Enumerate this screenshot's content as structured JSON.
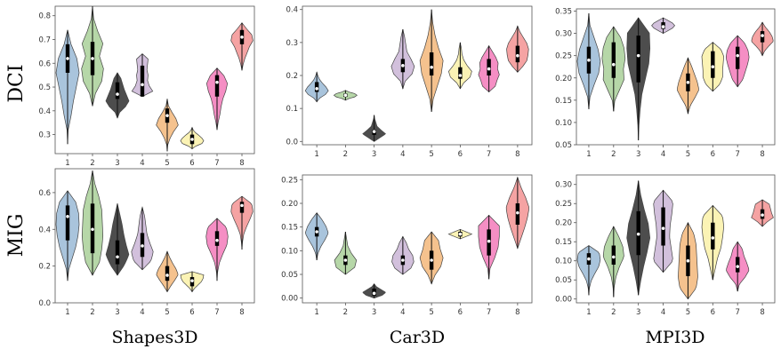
{
  "colors": [
    "#a9c4dc",
    "#b6d7a8",
    "#4d4d4d",
    "#d2c0dc",
    "#f5c28e",
    "#fbf3b5",
    "#f58ec4",
    "#f5a3a3"
  ],
  "row_labels": [
    "DCI",
    "MIG"
  ],
  "col_labels": [
    "Shapes3D",
    "Car3D",
    "MPI3D"
  ],
  "chart_data": [
    {
      "type": "violin",
      "row": "DCI",
      "dataset": "Shapes3D",
      "categories": [
        "1",
        "2",
        "3",
        "4",
        "5",
        "6",
        "7",
        "8"
      ],
      "ylim": [
        0.22,
        0.84
      ],
      "yticks": [
        0.3,
        0.4,
        0.5,
        0.6,
        0.7,
        0.8
      ],
      "ytick_labels": [
        "0.3",
        "0.4",
        "0.5",
        "0.6",
        "0.7",
        "0.8"
      ],
      "violins": [
        {
          "min": 0.26,
          "max": 0.74,
          "q1": 0.56,
          "median": 0.62,
          "q3": 0.68,
          "widths": [
            0.05,
            0.3,
            0.5,
            0.75,
            1.0,
            0.8,
            0.3
          ]
        },
        {
          "min": 0.42,
          "max": 0.84,
          "q1": 0.55,
          "median": 0.62,
          "q3": 0.69,
          "widths": [
            0.25,
            0.8,
            0.95,
            0.6,
            0.9,
            0.45,
            0.1
          ]
        },
        {
          "min": 0.37,
          "max": 0.56,
          "q1": 0.45,
          "median": 0.47,
          "q3": 0.52,
          "widths": [
            0.2,
            0.7,
            1.0,
            0.8,
            0.6,
            0.45,
            0.3
          ]
        },
        {
          "min": 0.46,
          "max": 0.64,
          "q1": 0.46,
          "median": 0.51,
          "q3": 0.59,
          "widths": [
            0.9,
            0.6,
            0.45,
            0.5,
            0.4,
            0.45,
            0.5
          ]
        },
        {
          "min": 0.23,
          "max": 0.45,
          "q1": 0.35,
          "median": 0.38,
          "q3": 0.41,
          "widths": [
            0.05,
            0.25,
            0.55,
            0.95,
            0.75,
            0.4,
            0.1
          ]
        },
        {
          "min": 0.24,
          "max": 0.33,
          "q1": 0.26,
          "median": 0.28,
          "q3": 0.3,
          "widths": [
            0.3,
            0.85,
            1.0,
            0.85,
            0.6,
            0.3,
            0.1
          ]
        },
        {
          "min": 0.32,
          "max": 0.58,
          "q1": 0.46,
          "median": 0.52,
          "q3": 0.55,
          "widths": [
            0.1,
            0.25,
            0.35,
            0.5,
            0.75,
            0.9,
            0.6
          ]
        },
        {
          "min": 0.57,
          "max": 0.77,
          "q1": 0.68,
          "median": 0.71,
          "q3": 0.74,
          "widths": [
            0.1,
            0.25,
            0.45,
            0.65,
            0.95,
            0.85,
            0.4
          ]
        }
      ]
    },
    {
      "type": "violin",
      "row": "DCI",
      "dataset": "Car3D",
      "categories": [
        "1",
        "2",
        "3",
        "4",
        "5",
        "6",
        "7",
        "8"
      ],
      "ylim": [
        -0.01,
        0.41
      ],
      "yticks": [
        0.0,
        0.1,
        0.2,
        0.3,
        0.4
      ],
      "ytick_labels": [
        "0.0",
        "0.1",
        "0.2",
        "0.3",
        "0.4"
      ],
      "violins": [
        {
          "min": 0.12,
          "max": 0.21,
          "q1": 0.15,
          "median": 0.16,
          "q3": 0.18,
          "widths": [
            0.25,
            0.75,
            1.0,
            0.8,
            0.5,
            0.25,
            0.1
          ]
        },
        {
          "min": 0.125,
          "max": 0.155,
          "q1": 0.135,
          "median": 0.14,
          "q3": 0.145,
          "widths": [
            0.3,
            0.8,
            1.0,
            0.8,
            0.3
          ]
        },
        {
          "min": 0.0,
          "max": 0.08,
          "q1": 0.02,
          "median": 0.03,
          "q3": 0.035,
          "widths": [
            0.5,
            1.0,
            0.6,
            0.25,
            0.15,
            0.05
          ]
        },
        {
          "min": 0.16,
          "max": 0.34,
          "q1": 0.21,
          "median": 0.23,
          "q3": 0.25,
          "widths": [
            0.2,
            0.8,
            1.0,
            0.7,
            0.35,
            0.25,
            0.15
          ]
        },
        {
          "min": 0.09,
          "max": 0.4,
          "q1": 0.2,
          "median": 0.225,
          "q3": 0.27,
          "widths": [
            0.15,
            0.5,
            0.85,
            1.0,
            0.6,
            0.3,
            0.1
          ]
        },
        {
          "min": 0.16,
          "max": 0.3,
          "q1": 0.19,
          "median": 0.2,
          "q3": 0.225,
          "widths": [
            0.3,
            0.85,
            1.0,
            0.6,
            0.3,
            0.15,
            0.1
          ]
        },
        {
          "min": 0.15,
          "max": 0.29,
          "q1": 0.2,
          "median": 0.22,
          "q3": 0.25,
          "widths": [
            0.55,
            0.7,
            0.9,
            0.75,
            0.8,
            0.6,
            0.3
          ]
        },
        {
          "min": 0.21,
          "max": 0.35,
          "q1": 0.24,
          "median": 0.26,
          "q3": 0.29,
          "widths": [
            0.45,
            0.8,
            0.9,
            0.95,
            0.8,
            0.5,
            0.2
          ]
        }
      ]
    },
    {
      "type": "violin",
      "row": "DCI",
      "dataset": "MPI3D",
      "categories": [
        "1",
        "2",
        "3",
        "4",
        "5",
        "6",
        "7",
        "8"
      ],
      "ylim": [
        0.05,
        0.355
      ],
      "yticks": [
        0.05,
        0.1,
        0.15,
        0.2,
        0.25,
        0.3,
        0.35
      ],
      "ytick_labels": [
        "0.05",
        "0.10",
        "0.15",
        "0.20",
        "0.25",
        "0.30",
        "0.35"
      ],
      "violins": [
        {
          "min": 0.13,
          "max": 0.345,
          "q1": 0.21,
          "median": 0.24,
          "q3": 0.27,
          "widths": [
            0.1,
            0.45,
            0.85,
            1.0,
            0.8,
            0.45,
            0.1
          ]
        },
        {
          "min": 0.125,
          "max": 0.315,
          "q1": 0.2,
          "median": 0.23,
          "q3": 0.28,
          "widths": [
            0.1,
            0.5,
            0.9,
            0.85,
            1.0,
            0.9,
            0.6
          ]
        },
        {
          "min": 0.06,
          "max": 0.335,
          "q1": 0.19,
          "median": 0.25,
          "q3": 0.295,
          "widths": [
            0.05,
            0.15,
            0.3,
            0.6,
            0.9,
            1.0,
            0.95
          ]
        },
        {
          "min": 0.3,
          "max": 0.335,
          "q1": 0.31,
          "median": 0.315,
          "q3": 0.325,
          "widths": [
            0.4,
            0.8,
            1.0,
            0.8,
            0.4
          ]
        },
        {
          "min": 0.12,
          "max": 0.245,
          "q1": 0.17,
          "median": 0.19,
          "q3": 0.21,
          "widths": [
            0.2,
            0.6,
            0.95,
            0.8,
            0.55,
            0.3
          ]
        },
        {
          "min": 0.17,
          "max": 0.28,
          "q1": 0.2,
          "median": 0.225,
          "q3": 0.26,
          "widths": [
            0.6,
            0.85,
            0.85,
            0.9,
            0.95,
            0.7
          ]
        },
        {
          "min": 0.18,
          "max": 0.295,
          "q1": 0.22,
          "median": 0.25,
          "q3": 0.27,
          "widths": [
            0.45,
            0.65,
            0.85,
            1.0,
            0.9,
            0.6
          ]
        },
        {
          "min": 0.25,
          "max": 0.325,
          "q1": 0.28,
          "median": 0.295,
          "q3": 0.305,
          "widths": [
            0.2,
            0.55,
            0.95,
            0.85,
            0.6,
            0.25
          ]
        }
      ]
    },
    {
      "type": "violin",
      "row": "MIG",
      "dataset": "Shapes3D",
      "categories": [
        "1",
        "2",
        "3",
        "4",
        "5",
        "6",
        "7",
        "8"
      ],
      "ylim": [
        0.0,
        0.73
      ],
      "yticks": [
        0.0,
        0.2,
        0.4,
        0.6
      ],
      "ytick_labels": [
        "0.0",
        "0.2",
        "0.4",
        "0.6"
      ],
      "violins": [
        {
          "min": 0.12,
          "max": 0.61,
          "q1": 0.34,
          "median": 0.47,
          "q3": 0.53,
          "widths": [
            0.1,
            0.4,
            0.7,
            0.9,
            1.0,
            0.95,
            0.7
          ]
        },
        {
          "min": 0.15,
          "max": 0.72,
          "q1": 0.27,
          "median": 0.4,
          "q3": 0.54,
          "widths": [
            0.6,
            0.8,
            0.9,
            0.85,
            0.8,
            0.55,
            0.2
          ]
        },
        {
          "min": 0.15,
          "max": 0.54,
          "q1": 0.21,
          "median": 0.25,
          "q3": 0.34,
          "widths": [
            0.6,
            1.0,
            0.75,
            0.55,
            0.4,
            0.2
          ]
        },
        {
          "min": 0.18,
          "max": 0.52,
          "q1": 0.25,
          "median": 0.31,
          "q3": 0.38,
          "widths": [
            0.75,
            0.95,
            0.65,
            0.4,
            0.3,
            0.2
          ]
        },
        {
          "min": 0.06,
          "max": 0.28,
          "q1": 0.12,
          "median": 0.15,
          "q3": 0.2,
          "widths": [
            0.3,
            0.65,
            0.95,
            0.75,
            0.45,
            0.2
          ]
        },
        {
          "min": 0.06,
          "max": 0.17,
          "q1": 0.09,
          "median": 0.12,
          "q3": 0.14,
          "widths": [
            0.2,
            0.5,
            0.8,
            0.95,
            1.0
          ]
        },
        {
          "min": 0.12,
          "max": 0.46,
          "q1": 0.31,
          "median": 0.34,
          "q3": 0.39,
          "widths": [
            0.05,
            0.2,
            0.5,
            0.85,
            0.95,
            0.8
          ]
        },
        {
          "min": 0.29,
          "max": 0.58,
          "q1": 0.49,
          "median": 0.53,
          "q3": 0.55,
          "widths": [
            0.05,
            0.15,
            0.4,
            0.7,
            0.95,
            0.85
          ]
        }
      ]
    },
    {
      "type": "violin",
      "row": "MIG",
      "dataset": "Car3D",
      "categories": [
        "1",
        "2",
        "3",
        "4",
        "5",
        "6",
        "7",
        "8"
      ],
      "ylim": [
        -0.01,
        0.26
      ],
      "yticks": [
        0.0,
        0.05,
        0.1,
        0.15,
        0.2,
        0.25
      ],
      "ytick_labels": [
        "0.00",
        "0.05",
        "0.10",
        "0.15",
        "0.20",
        "0.25"
      ],
      "violins": [
        {
          "min": 0.08,
          "max": 0.18,
          "q1": 0.13,
          "median": 0.14,
          "q3": 0.15,
          "widths": [
            0.1,
            0.35,
            0.7,
            1.0,
            0.8,
            0.45
          ]
        },
        {
          "min": 0.05,
          "max": 0.14,
          "q1": 0.07,
          "median": 0.08,
          "q3": 0.09,
          "widths": [
            0.8,
            0.95,
            0.5,
            0.2,
            0.1
          ]
        },
        {
          "min": 0.0,
          "max": 0.03,
          "q1": 0.005,
          "median": 0.01,
          "q3": 0.02,
          "widths": [
            0.7,
            1.0,
            0.6,
            0.2
          ]
        },
        {
          "min": 0.05,
          "max": 0.13,
          "q1": 0.07,
          "median": 0.08,
          "q3": 0.09,
          "widths": [
            0.7,
            0.95,
            0.85,
            0.5,
            0.3
          ]
        },
        {
          "min": 0.03,
          "max": 0.14,
          "q1": 0.06,
          "median": 0.08,
          "q3": 0.1,
          "widths": [
            0.3,
            0.8,
            1.0,
            0.75,
            0.6
          ]
        },
        {
          "min": 0.125,
          "max": 0.145,
          "q1": 0.13,
          "median": 0.135,
          "q3": 0.14,
          "widths": [
            0.5,
            1.0,
            0.5
          ]
        },
        {
          "min": 0.04,
          "max": 0.175,
          "q1": 0.09,
          "median": 0.12,
          "q3": 0.145,
          "widths": [
            0.1,
            0.5,
            0.8,
            0.9,
            0.9
          ]
        },
        {
          "min": 0.105,
          "max": 0.255,
          "q1": 0.155,
          "median": 0.18,
          "q3": 0.2,
          "widths": [
            0.3,
            0.6,
            0.85,
            1.0,
            0.7,
            0.3
          ]
        }
      ]
    },
    {
      "type": "violin",
      "row": "MIG",
      "dataset": "MPI3D",
      "categories": [
        "1",
        "2",
        "3",
        "4",
        "5",
        "6",
        "7",
        "8"
      ],
      "ylim": [
        -0.01,
        0.325
      ],
      "yticks": [
        0.0,
        0.05,
        0.1,
        0.15,
        0.2,
        0.25,
        0.3
      ],
      "ytick_labels": [
        "0.00",
        "0.05",
        "0.10",
        "0.15",
        "0.20",
        "0.25",
        "0.30"
      ],
      "violins": [
        {
          "min": 0.01,
          "max": 0.14,
          "q1": 0.09,
          "median": 0.105,
          "q3": 0.12,
          "widths": [
            0.05,
            0.2,
            0.5,
            0.85,
            1.0,
            0.9
          ]
        },
        {
          "min": 0.005,
          "max": 0.19,
          "q1": 0.09,
          "median": 0.11,
          "q3": 0.14,
          "widths": [
            0.05,
            0.2,
            0.5,
            0.9,
            0.8,
            0.45
          ]
        },
        {
          "min": 0.01,
          "max": 0.31,
          "q1": 0.115,
          "median": 0.17,
          "q3": 0.23,
          "widths": [
            0.2,
            0.45,
            0.75,
            1.0,
            0.85,
            0.5,
            0.2
          ]
        },
        {
          "min": 0.07,
          "max": 0.285,
          "q1": 0.14,
          "median": 0.185,
          "q3": 0.24,
          "widths": [
            0.85,
            0.7,
            0.55,
            0.6,
            0.75,
            0.85
          ]
        },
        {
          "min": 0.0,
          "max": 0.2,
          "q1": 0.06,
          "median": 0.1,
          "q3": 0.14,
          "widths": [
            0.7,
            0.85,
            0.8,
            0.75,
            0.7,
            0.5
          ]
        },
        {
          "min": 0.05,
          "max": 0.245,
          "q1": 0.13,
          "median": 0.16,
          "q3": 0.2,
          "widths": [
            0.2,
            0.4,
            0.7,
            0.85,
            0.95,
            0.85
          ]
        },
        {
          "min": 0.02,
          "max": 0.15,
          "q1": 0.07,
          "median": 0.085,
          "q3": 0.11,
          "widths": [
            0.15,
            0.65,
            1.0,
            0.8,
            0.55,
            0.4
          ]
        },
        {
          "min": 0.19,
          "max": 0.26,
          "q1": 0.21,
          "median": 0.22,
          "q3": 0.235,
          "widths": [
            0.4,
            0.95,
            0.8,
            0.7,
            0.6
          ]
        }
      ]
    }
  ]
}
